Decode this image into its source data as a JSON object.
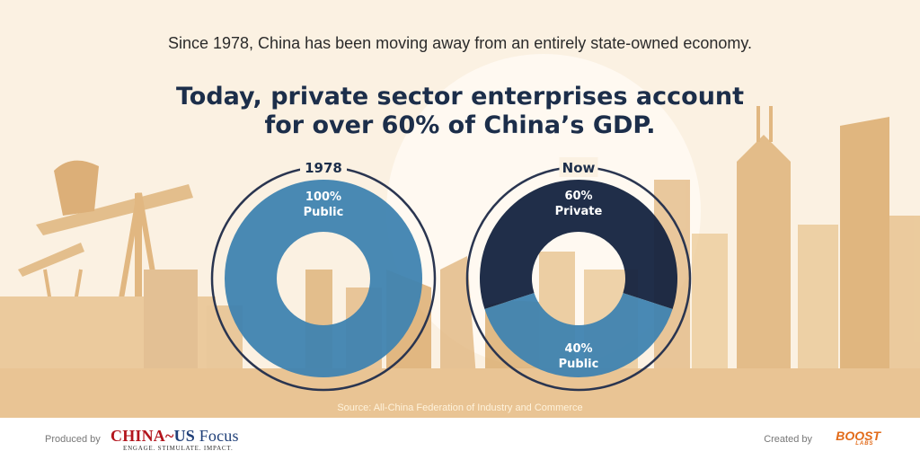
{
  "header": {
    "subtitle": "Since 1978, China has been moving away from an entirely state-owned economy.",
    "title_line1": "Today, private sector enterprises account",
    "title_line2": "for over 60% of China’s GDP."
  },
  "source": "Source: All-China Federation of Industry and Commerce",
  "footer": {
    "produced_by": "Produced by",
    "logo_china": "CHINA",
    "logo_us": "US",
    "logo_focus": "Focus",
    "logo_tagline": "ENGAGE. STIMULATE. IMPACT.",
    "created_by": "Created by",
    "logo_boost": "BOOST",
    "logo_labs": "LABS"
  },
  "colors": {
    "public": "#3f83b0",
    "private": "#14233f",
    "ring": "#2a3550",
    "building": "#e8bd82",
    "building_dark": "#d9a461",
    "sky": "#fbf1e2"
  },
  "chart_data": [
    {
      "type": "pie",
      "variant": "donut",
      "title": "1978",
      "slices": [
        {
          "label": "Public",
          "value": 100,
          "value_label": "100%",
          "color": "#3f83b0"
        }
      ]
    },
    {
      "type": "pie",
      "variant": "donut",
      "title": "Now",
      "slices": [
        {
          "label": "Private",
          "value": 60,
          "value_label": "60%",
          "color": "#14233f"
        },
        {
          "label": "Public",
          "value": 40,
          "value_label": "40%",
          "color": "#3f83b0"
        }
      ]
    }
  ]
}
